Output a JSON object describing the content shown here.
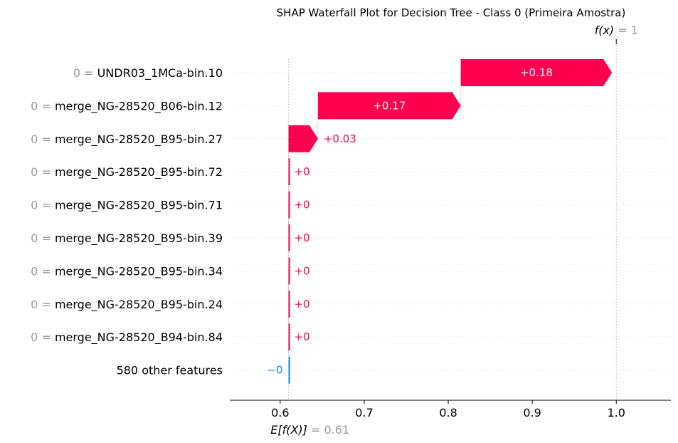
{
  "chart_data": {
    "type": "waterfall",
    "title": "SHAP Waterfall Plot for Decision Tree - Class 0 (Primeira Amostra)",
    "base_value": 0.61,
    "output_value": 1,
    "base_label": {
      "symbol": "E[f(X)]",
      "equals": "= 0.61"
    },
    "output_label": {
      "symbol": "f(x)",
      "equals": "= 1"
    },
    "xlim": [
      0.54,
      1.065
    ],
    "xticks": [
      {
        "value": 0.6,
        "label": "0.6"
      },
      {
        "value": 0.7,
        "label": "0.7"
      },
      {
        "value": 0.8,
        "label": "0.8"
      },
      {
        "value": 0.9,
        "label": "0.9"
      },
      {
        "value": 1.0,
        "label": "1.0"
      }
    ],
    "features": [
      {
        "value": "0",
        "eq": " = ",
        "name": "UNDR03_1MCa-bin.10",
        "shap": 0.18,
        "label": "+0.18"
      },
      {
        "value": "0",
        "eq": " = ",
        "name": "merge_NG-28520_B06-bin.12",
        "shap": 0.17,
        "label": "+0.17"
      },
      {
        "value": "0",
        "eq": " = ",
        "name": "merge_NG-28520_B95-bin.27",
        "shap": 0.035,
        "label": "+0.03"
      },
      {
        "value": "0",
        "eq": " = ",
        "name": "merge_NG-28520_B95-bin.72",
        "shap": 0,
        "label": "+0"
      },
      {
        "value": "0",
        "eq": " = ",
        "name": "merge_NG-28520_B95-bin.71",
        "shap": 0,
        "label": "+0"
      },
      {
        "value": "0",
        "eq": " = ",
        "name": "merge_NG-28520_B95-bin.39",
        "shap": 0,
        "label": "+0"
      },
      {
        "value": "0",
        "eq": " = ",
        "name": "merge_NG-28520_B95-bin.34",
        "shap": 0,
        "label": "+0"
      },
      {
        "value": "0",
        "eq": " = ",
        "name": "merge_NG-28520_B95-bin.24",
        "shap": 0,
        "label": "+0"
      },
      {
        "value": "0",
        "eq": " = ",
        "name": "merge_NG-28520_B94-bin.84",
        "shap": 0,
        "label": "+0"
      },
      {
        "value": "",
        "eq": "",
        "name": "580 other features",
        "shap": -0.0001,
        "label": "−0"
      }
    ],
    "colors": {
      "positive": "#ff0051",
      "negative": "#008bfb",
      "axis": "#000000",
      "grid": "#cccccc"
    }
  }
}
